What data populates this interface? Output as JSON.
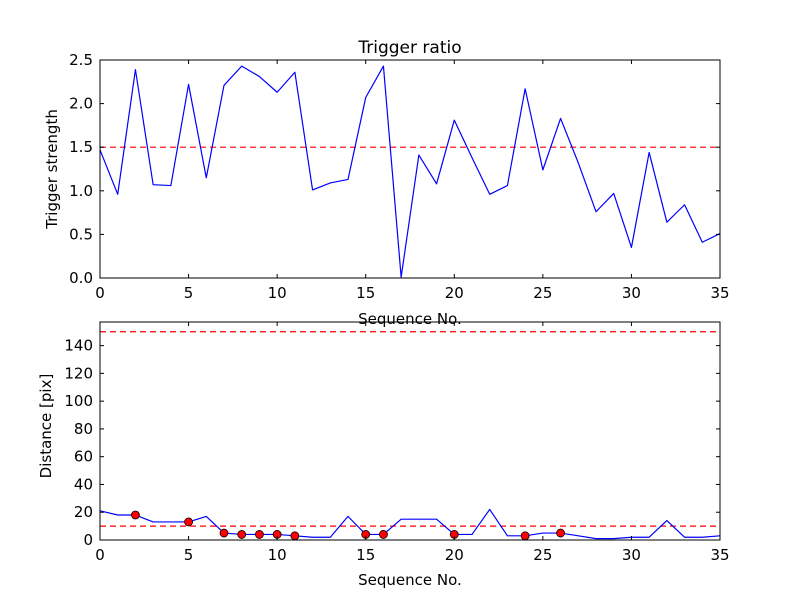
{
  "figure": {
    "background": "#ffffff"
  },
  "chart_data": [
    {
      "type": "line",
      "title": "Trigger ratio",
      "xlabel": "Sequence No.",
      "ylabel": "Trigger strength",
      "xlim": [
        0,
        35
      ],
      "ylim": [
        0,
        2.5
      ],
      "xticks": [
        0,
        5,
        10,
        15,
        20,
        25,
        30,
        35
      ],
      "yticks": [
        0.0,
        0.5,
        1.0,
        1.5,
        2.0,
        2.5
      ],
      "ytick_labels": [
        "0.0",
        "0.5",
        "1.0",
        "1.5",
        "2.0",
        "2.5"
      ],
      "grid": false,
      "series": [
        {
          "color": "#0000ff",
          "x": [
            0,
            1,
            2,
            3,
            4,
            5,
            6,
            7,
            8,
            9,
            10,
            11,
            12,
            13,
            14,
            15,
            16,
            17,
            18,
            19,
            20,
            21,
            22,
            23,
            24,
            25,
            26,
            27,
            28,
            29,
            30,
            31,
            32,
            33,
            34,
            35
          ],
          "values": [
            1.47,
            0.96,
            2.39,
            1.07,
            1.06,
            2.22,
            1.15,
            2.21,
            2.43,
            2.31,
            2.13,
            2.36,
            1.01,
            1.09,
            1.13,
            2.07,
            2.43,
            0.01,
            1.41,
            1.08,
            1.81,
            1.38,
            0.96,
            1.06,
            2.17,
            1.24,
            1.83,
            1.32,
            0.76,
            0.97,
            0.35,
            1.44,
            0.64,
            0.84,
            0.41,
            0.51
          ]
        }
      ],
      "threshold_lines": [
        {
          "y": 1.5,
          "color": "#ff0000",
          "style": "dashed"
        }
      ]
    },
    {
      "type": "line",
      "title": "",
      "xlabel": "Sequence No.",
      "ylabel": "Distance [pix]",
      "xlim": [
        0,
        35
      ],
      "ylim": [
        0,
        157
      ],
      "xticks": [
        0,
        5,
        10,
        15,
        20,
        25,
        30,
        35
      ],
      "yticks": [
        0,
        20,
        40,
        60,
        80,
        100,
        120,
        140
      ],
      "ytick_labels": [
        "0",
        "20",
        "40",
        "60",
        "80",
        "100",
        "120",
        "140"
      ],
      "grid": false,
      "series": [
        {
          "color": "#0000ff",
          "x": [
            0,
            1,
            2,
            3,
            4,
            5,
            6,
            7,
            8,
            9,
            10,
            11,
            12,
            13,
            14,
            15,
            16,
            17,
            18,
            19,
            20,
            21,
            22,
            23,
            24,
            25,
            26,
            27,
            28,
            29,
            30,
            31,
            32,
            33,
            34,
            35
          ],
          "values": [
            21,
            18,
            18,
            13,
            13,
            13,
            17,
            5,
            4,
            4,
            4,
            3,
            2,
            2,
            17,
            4,
            4,
            15,
            15,
            15,
            4,
            4,
            22,
            3,
            3,
            5,
            5,
            3,
            1,
            1,
            2,
            2,
            14,
            2,
            2,
            3
          ]
        }
      ],
      "markers": {
        "color": "#ff0000",
        "edge_color": "#000000",
        "x": [
          2,
          5,
          7,
          8,
          9,
          10,
          11,
          15,
          16,
          20,
          24,
          26
        ],
        "values": [
          18,
          13,
          5,
          4,
          4,
          4,
          3,
          4,
          4,
          4,
          3,
          5
        ]
      },
      "threshold_lines": [
        {
          "y": 150,
          "color": "#ff0000",
          "style": "dashed"
        },
        {
          "y": 10,
          "color": "#ff0000",
          "style": "dashed"
        }
      ]
    }
  ]
}
